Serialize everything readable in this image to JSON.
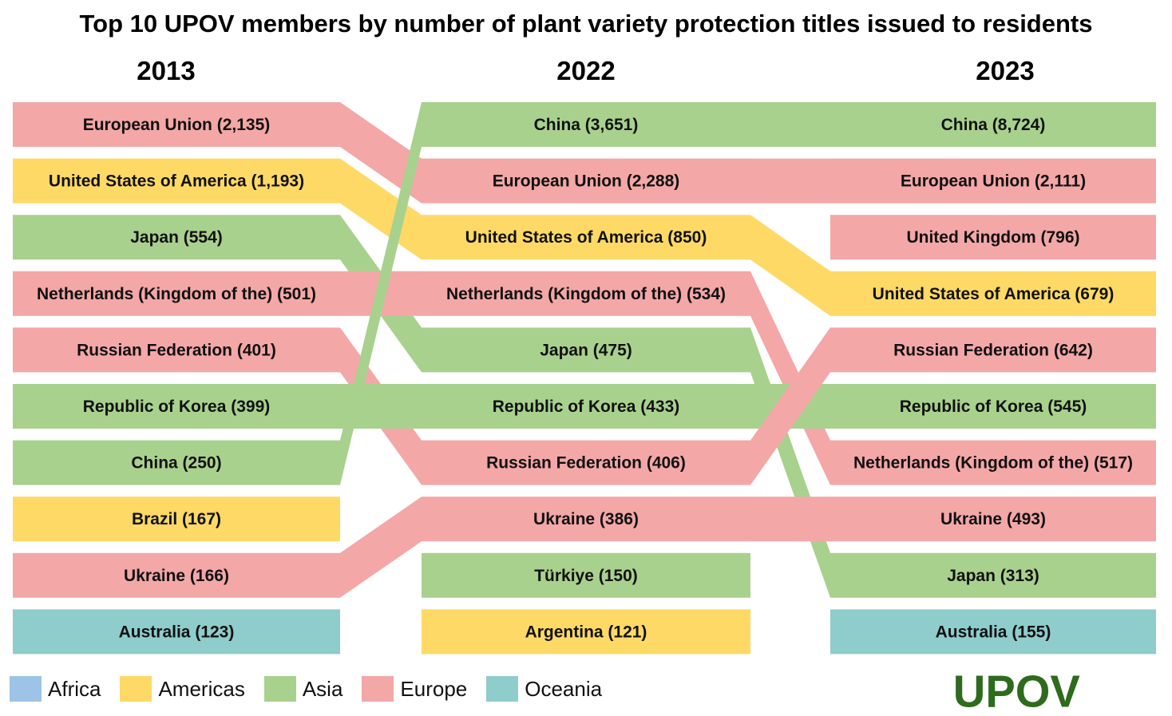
{
  "title": "Top 10 UPOV members by number of plant variety protection titles issued to residents",
  "colors": {
    "Africa": "#9dc3e6",
    "Americas": "#ffd966",
    "Asia": "#a9d18e",
    "Europe": "#f4a7a7",
    "Oceania": "#8fcccc"
  },
  "legend": [
    "Africa",
    "Americas",
    "Asia",
    "Europe",
    "Oceania"
  ],
  "logo_text": "UPOV",
  "chart_data": {
    "type": "bump",
    "years": [
      "2013",
      "2022",
      "2023"
    ],
    "columns": [
      [
        {
          "name": "European Union",
          "value": 2135,
          "label": "European Union (2,135)",
          "region": "Europe"
        },
        {
          "name": "United States of America",
          "value": 1193,
          "label": "United States of America (1,193)",
          "region": "Americas"
        },
        {
          "name": "Japan",
          "value": 554,
          "label": "Japan (554)",
          "region": "Asia"
        },
        {
          "name": "Netherlands (Kingdom of the)",
          "value": 501,
          "label": "Netherlands (Kingdom of the) (501)",
          "region": "Europe"
        },
        {
          "name": "Russian Federation",
          "value": 401,
          "label": "Russian Federation (401)",
          "region": "Europe"
        },
        {
          "name": "Republic of Korea",
          "value": 399,
          "label": "Republic of Korea (399)",
          "region": "Asia"
        },
        {
          "name": "China",
          "value": 250,
          "label": "China (250)",
          "region": "Asia"
        },
        {
          "name": "Brazil",
          "value": 167,
          "label": "Brazil (167)",
          "region": "Americas"
        },
        {
          "name": "Ukraine",
          "value": 166,
          "label": "Ukraine (166)",
          "region": "Europe"
        },
        {
          "name": "Australia",
          "value": 123,
          "label": "Australia (123)",
          "region": "Oceania"
        }
      ],
      [
        {
          "name": "China",
          "value": 3651,
          "label": "China (3,651)",
          "region": "Asia"
        },
        {
          "name": "European Union",
          "value": 2288,
          "label": "European Union (2,288)",
          "region": "Europe"
        },
        {
          "name": "United States of America",
          "value": 850,
          "label": "United States of America (850)",
          "region": "Americas"
        },
        {
          "name": "Netherlands (Kingdom of the)",
          "value": 534,
          "label": "Netherlands (Kingdom of the) (534)",
          "region": "Europe"
        },
        {
          "name": "Japan",
          "value": 475,
          "label": "Japan (475)",
          "region": "Asia"
        },
        {
          "name": "Republic of Korea",
          "value": 433,
          "label": "Republic of Korea (433)",
          "region": "Asia"
        },
        {
          "name": "Russian Federation",
          "value": 406,
          "label": "Russian Federation (406)",
          "region": "Europe"
        },
        {
          "name": "Ukraine",
          "value": 386,
          "label": "Ukraine (386)",
          "region": "Europe"
        },
        {
          "name": "Türkiye",
          "value": 150,
          "label": "Türkiye (150)",
          "region": "Asia"
        },
        {
          "name": "Argentina",
          "value": 121,
          "label": "Argentina (121)",
          "region": "Americas"
        }
      ],
      [
        {
          "name": "China",
          "value": 8724,
          "label": "China (8,724)",
          "region": "Asia"
        },
        {
          "name": "European Union",
          "value": 2111,
          "label": "European Union (2,111)",
          "region": "Europe"
        },
        {
          "name": "United Kingdom",
          "value": 796,
          "label": "United Kingdom (796)",
          "region": "Europe"
        },
        {
          "name": "United States of America",
          "value": 679,
          "label": "United States of America (679)",
          "region": "Americas"
        },
        {
          "name": "Russian Federation",
          "value": 642,
          "label": "Russian Federation (642)",
          "region": "Europe"
        },
        {
          "name": "Republic of Korea",
          "value": 545,
          "label": "Republic of Korea (545)",
          "region": "Asia"
        },
        {
          "name": "Netherlands (Kingdom of the)",
          "value": 517,
          "label": "Netherlands (Kingdom of the) (517)",
          "region": "Europe"
        },
        {
          "name": "Ukraine",
          "value": 493,
          "label": "Ukraine (493)",
          "region": "Europe"
        },
        {
          "name": "Japan",
          "value": 313,
          "label": "Japan (313)",
          "region": "Asia"
        },
        {
          "name": "Australia",
          "value": 155,
          "label": "Australia (155)",
          "region": "Oceania"
        }
      ]
    ]
  }
}
